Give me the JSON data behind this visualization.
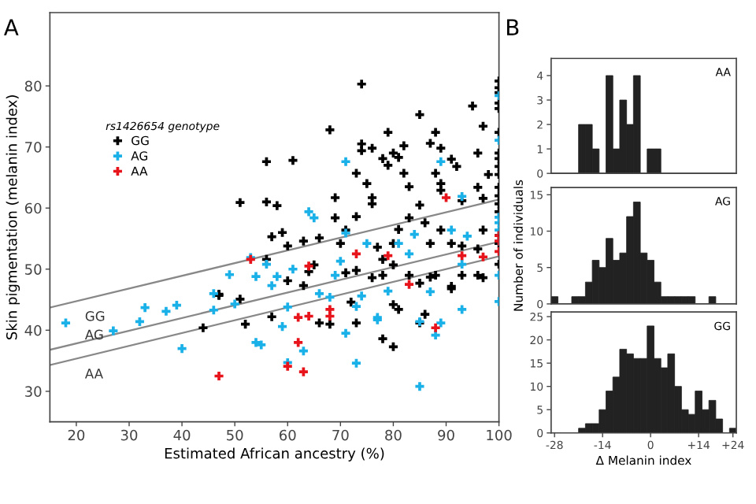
{
  "chart_data": [
    {
      "type": "scatter",
      "xlabel": "Estimated African ancestry (%)",
      "ylabel": "Skin pigmentation (melanin index)",
      "legend_title": "rs1426654 genotype",
      "annotations": [
        "A"
      ],
      "xlim": [
        15,
        100
      ],
      "xticks": [
        20,
        30,
        40,
        50,
        60,
        70,
        80,
        90,
        100
      ],
      "ylim": [
        25,
        92
      ],
      "yticks": [
        30,
        40,
        50,
        60,
        70,
        80
      ],
      "grid": false,
      "legend": "top left",
      "series": [
        {
          "name": "GG",
          "color": "#000000",
          "x": [
            44,
            47,
            47,
            51,
            52,
            51,
            56,
            56,
            56,
            61,
            58,
            57,
            59,
            60,
            63,
            64,
            65,
            60,
            66,
            68,
            69,
            69,
            70,
            66,
            57,
            68,
            74,
            74,
            74,
            73,
            75,
            76,
            78,
            79,
            80,
            81,
            82,
            79,
            82,
            83,
            85,
            88,
            87,
            89,
            91,
            92,
            88,
            89,
            89,
            95,
            97,
            96,
            96,
            98,
            97,
            93,
            71,
            73,
            76,
            76,
            77,
            78,
            80,
            81,
            83,
            85,
            86,
            87,
            89,
            91,
            93,
            96,
            97,
            73,
            76,
            78,
            80,
            83,
            85,
            87,
            91,
            91,
            93,
            96,
            97,
            71,
            72,
            73,
            78,
            80,
            80,
            81,
            85,
            86,
            88,
            63,
            100,
            100,
            100,
            100,
            100,
            100,
            100,
            100,
            100,
            100,
            100,
            100,
            100,
            100,
            100,
            100,
            100
          ],
          "values": [
            40.4,
            45.9,
            45.7,
            45.1,
            41,
            60.9,
            61,
            67.6,
            51.6,
            67.8,
            60.4,
            55.3,
            56,
            53.8,
            54.6,
            49.6,
            50.7,
            48.1,
            55.1,
            72.8,
            61.7,
            58.4,
            54.2,
            41.2,
            42.2,
            41,
            80.3,
            70.5,
            69.4,
            65.7,
            64,
            69.8,
            68.1,
            72.4,
            69,
            68.3,
            70.2,
            67,
            65.7,
            63.5,
            75.3,
            72.4,
            70.6,
            69.8,
            68,
            66.8,
            65.7,
            64,
            62.9,
            76.7,
            73.4,
            69,
            63.4,
            65.5,
            61.6,
            61.2,
            56.4,
            58.6,
            61.7,
            60.7,
            53.6,
            51.6,
            54.2,
            56.5,
            58.4,
            60.5,
            57.6,
            54.2,
            56.4,
            54.2,
            53.8,
            53.3,
            56.4,
            49.8,
            48.6,
            49,
            50.7,
            49,
            47.7,
            48.7,
            47.2,
            46.8,
            49,
            49,
            48.6,
            49.4,
            44.6,
            41.2,
            38.6,
            37.3,
            44.2,
            43.4,
            41.2,
            42.6,
            49,
            47.3,
            80.8,
            79.7,
            78.9,
            77.2,
            76.3,
            72.4,
            69,
            68.1,
            66.8,
            65.5,
            63.4,
            62,
            60.7,
            59.4,
            55.5,
            54.2,
            50.8
          ]
        },
        {
          "name": "AG",
          "color": "#1ab0e8",
          "x": [
            18,
            27,
            32,
            33,
            37,
            39,
            40,
            46,
            46,
            49,
            50,
            54,
            54,
            55,
            53,
            56,
            58,
            57,
            61,
            64,
            65,
            59,
            60,
            66,
            68,
            69,
            70,
            71,
            71,
            75,
            74,
            73,
            77,
            77,
            79,
            81,
            84,
            83,
            87,
            89,
            89,
            88,
            85,
            85,
            73,
            63,
            60,
            71,
            93,
            91,
            94,
            93,
            93,
            100,
            100,
            100,
            100,
            100,
            100,
            100,
            100
          ],
          "values": [
            41.2,
            39.9,
            41.4,
            43.7,
            43.1,
            44.1,
            37,
            46,
            43.3,
            49.1,
            44.3,
            48.8,
            38,
            37.6,
            51.9,
            50.8,
            48.8,
            47.3,
            50,
            59.4,
            58.4,
            40.6,
            43.8,
            46,
            45.4,
            49,
            51.3,
            67.6,
            55.9,
            54.2,
            45.6,
            43.9,
            42.1,
            41.7,
            46.4,
            54.2,
            55.7,
            52.5,
            46.3,
            67.6,
            41.2,
            39.2,
            41.4,
            30.8,
            34.6,
            36.6,
            34.7,
            39.5,
            61.9,
            56.4,
            55.4,
            50.8,
            43.4,
            78.4,
            71.1,
            58.5,
            57.6,
            56.4,
            54.6,
            49,
            44.7
          ]
        },
        {
          "name": "AA",
          "color": "#e8141c",
          "x": [
            47,
            53,
            64,
            73,
            79,
            83,
            90,
            93,
            97,
            88,
            68,
            68,
            64,
            62,
            62,
            60,
            63,
            100,
            100,
            100
          ],
          "values": [
            32.5,
            51.6,
            50.5,
            52.5,
            52.2,
            47.5,
            61.7,
            52.2,
            52,
            40.4,
            43.4,
            42.3,
            42.3,
            42.1,
            38,
            34.1,
            33.2,
            55.5,
            54.6,
            52.9
          ]
        },
        {
          "type": "line",
          "name": "GG",
          "color": "#888888",
          "line_style": "solid",
          "x": [
            15,
            100
          ],
          "values": [
            43.7,
            61.4
          ]
        },
        {
          "type": "line",
          "name": "AG",
          "color": "#888888",
          "line_style": "solid",
          "x": [
            15,
            100
          ],
          "values": [
            36.8,
            54.5
          ]
        },
        {
          "type": "line",
          "name": "AA",
          "color": "#888888",
          "line_style": "solid",
          "x": [
            15,
            100
          ],
          "values": [
            34.3,
            52.1
          ]
        }
      ]
    },
    {
      "type": "histogram",
      "title": "AA",
      "annotations": [
        "B"
      ],
      "tick_labels": "y",
      "color": "#222222",
      "grid": false,
      "xlim": [
        -29,
        25
      ],
      "ylim": [
        0,
        4.7
      ],
      "yticks": [
        0,
        1,
        2,
        3,
        4
      ],
      "bins": [
        -29,
        -27,
        -25,
        -23,
        -21,
        -19,
        -17,
        -15,
        -13,
        -11,
        -9,
        -7,
        -5,
        -3,
        -1,
        1,
        3,
        5,
        7,
        9,
        11,
        13,
        15,
        17,
        19,
        21,
        23,
        25
      ],
      "values": [
        0,
        0,
        0,
        0,
        2,
        2,
        1,
        0,
        4,
        1,
        3,
        2,
        4,
        0,
        1,
        1,
        0,
        0,
        0,
        0,
        0,
        0,
        0,
        0,
        0,
        0,
        0
      ]
    },
    {
      "type": "histogram",
      "title": "AG",
      "ylabel": "Number of individuals",
      "tick_labels": "y",
      "color": "#222222",
      "grid": false,
      "xlim": [
        -29,
        25
      ],
      "ylim": [
        0,
        16
      ],
      "yticks": [
        0,
        5,
        10,
        15
      ],
      "bins": [
        -29,
        -27,
        -25,
        -23,
        -21,
        -19,
        -17,
        -15,
        -13,
        -11,
        -9,
        -7,
        -5,
        -3,
        -1,
        1,
        3,
        5,
        7,
        9,
        11,
        13,
        15,
        17,
        19,
        21,
        23,
        25
      ],
      "values": [
        1,
        0,
        0,
        1,
        1,
        3,
        6,
        5,
        9,
        6,
        7,
        12,
        14,
        7,
        6,
        3,
        1,
        1,
        1,
        1,
        1,
        0,
        0,
        1,
        0,
        0,
        0
      ]
    },
    {
      "type": "histogram",
      "title": "GG",
      "xlabel": "Δ Melanin index",
      "color": "#222222",
      "grid": false,
      "xlim": [
        -29,
        25
      ],
      "ylim": [
        0,
        26
      ],
      "yticks": [
        0,
        5,
        10,
        15,
        20,
        25
      ],
      "xticks": [
        -28,
        -14,
        0,
        {
          "value": 14,
          "label": "+14"
        },
        {
          "value": 24,
          "label": "+24"
        }
      ],
      "bins": [
        -29,
        -27,
        -25,
        -23,
        -21,
        -19,
        -17,
        -15,
        -13,
        -11,
        -9,
        -7,
        -5,
        -3,
        -1,
        1,
        3,
        5,
        7,
        9,
        11,
        13,
        15,
        17,
        19,
        21,
        23,
        25
      ],
      "values": [
        0,
        0,
        0,
        0,
        1,
        2,
        2,
        5,
        9,
        12,
        18,
        17,
        16,
        16,
        23,
        16,
        14,
        17,
        10,
        5,
        4,
        9,
        5,
        7,
        3,
        0,
        1
      ]
    }
  ]
}
